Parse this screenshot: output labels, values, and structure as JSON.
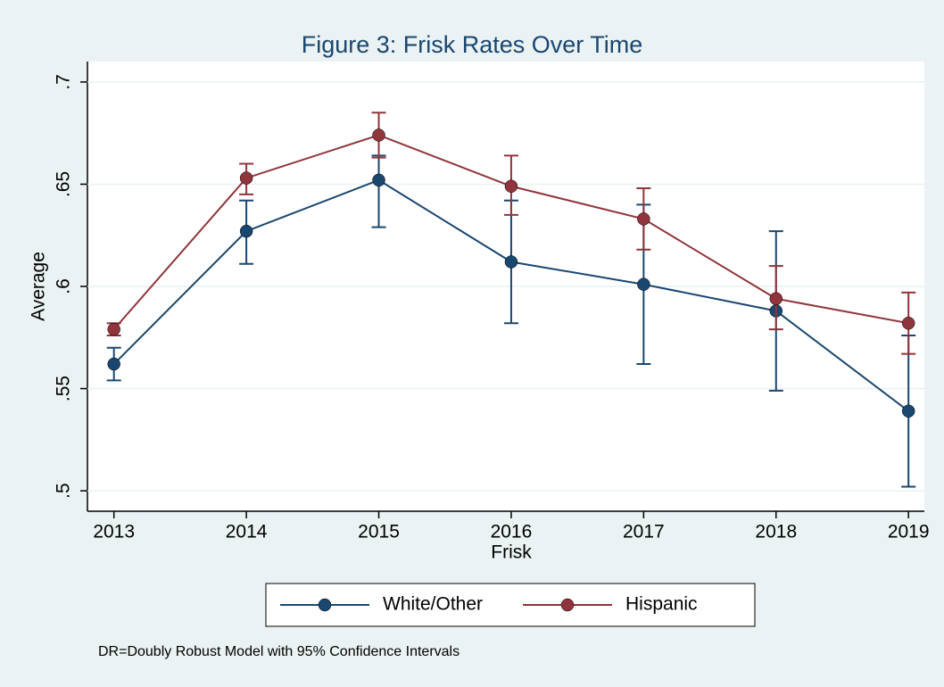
{
  "chart_data": {
    "type": "line",
    "title": "Figure 3: Frisk Rates Over Time",
    "x_label": "Frisk",
    "y_label": "Average",
    "note": "DR=Doubly Robust Model with 95% Confidence Intervals",
    "x": [
      2013,
      2014,
      2015,
      2016,
      2017,
      2018,
      2019
    ],
    "series": [
      {
        "name": "White/Other",
        "color": "#1a476f",
        "values": [
          0.562,
          0.627,
          0.652,
          0.612,
          0.601,
          0.588,
          0.539
        ],
        "lower": [
          0.554,
          0.611,
          0.629,
          0.582,
          0.562,
          0.549,
          0.502
        ],
        "upper": [
          0.57,
          0.642,
          0.664,
          0.642,
          0.64,
          0.627,
          0.576
        ]
      },
      {
        "name": "Hispanic",
        "color": "#90353b",
        "values": [
          0.579,
          0.653,
          0.674,
          0.649,
          0.633,
          0.594,
          0.582
        ],
        "lower": [
          0.576,
          0.645,
          0.663,
          0.635,
          0.618,
          0.579,
          0.567
        ],
        "upper": [
          0.582,
          0.66,
          0.685,
          0.664,
          0.648,
          0.61,
          0.597
        ]
      }
    ],
    "xlim": [
      2012.8,
      2019.12
    ],
    "xticks": [
      2013,
      2014,
      2015,
      2016,
      2017,
      2018,
      2019
    ],
    "ylim": [
      0.49,
      0.71
    ],
    "yticks": [
      {
        "value": 0.5,
        "label": ".5"
      },
      {
        "value": 0.55,
        "label": ".55"
      },
      {
        "value": 0.6,
        "label": ".6"
      },
      {
        "value": 0.65,
        "label": ".65"
      },
      {
        "value": 0.7,
        "label": ".7"
      }
    ],
    "grid": true
  }
}
